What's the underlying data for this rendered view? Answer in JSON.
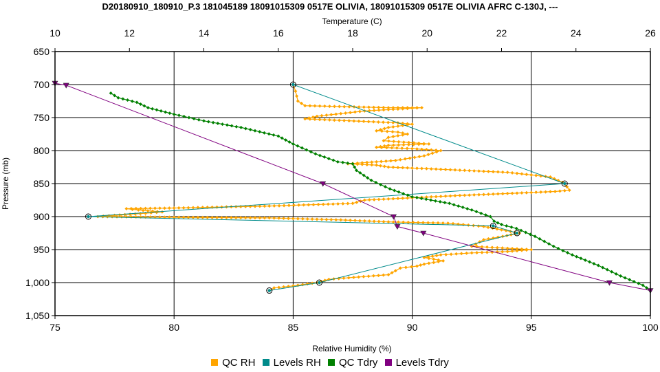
{
  "chart_data": {
    "type": "line",
    "title": "D20180910_180910_P.3 181045189 18091015309 0517E OLIVIA, 18091015309 0517E OLIVIA AFRC C-130J, ---",
    "x_bottom_label": "Relative Humidity (%)",
    "x_top_label": "Temperature (C)",
    "ylabel": "Pressure (mb)",
    "x_bottom_range": [
      75,
      100
    ],
    "x_top_range": [
      10,
      26
    ],
    "y_range": [
      650,
      1050
    ],
    "y_inverted": true,
    "grid": true,
    "legend_position": "bottom",
    "x_bottom_ticks": [
      "75",
      "80",
      "85",
      "90",
      "95",
      "100"
    ],
    "x_top_ticks": [
      "10",
      "12",
      "14",
      "16",
      "18",
      "20",
      "22",
      "24",
      "26"
    ],
    "y_ticks": [
      "650",
      "700",
      "750",
      "800",
      "850",
      "900",
      "950",
      "1,000",
      "1,050"
    ],
    "series": [
      {
        "name": "QC RH",
        "axis": "rh",
        "color": "#FFA500",
        "marker": "diamond",
        "points": [
          [
            85.0,
            700
          ],
          [
            85.1,
            710
          ],
          [
            85.2,
            725
          ],
          [
            85.5,
            732
          ],
          [
            89.0,
            735
          ],
          [
            90.4,
            735
          ],
          [
            88.0,
            740
          ],
          [
            86.0,
            748
          ],
          [
            85.5,
            752
          ],
          [
            89.4,
            758
          ],
          [
            90.0,
            760
          ],
          [
            89.0,
            765
          ],
          [
            88.5,
            770
          ],
          [
            89.4,
            772
          ],
          [
            89.8,
            775
          ],
          [
            89.0,
            780
          ],
          [
            88.8,
            785
          ],
          [
            90.7,
            790
          ],
          [
            89.0,
            792
          ],
          [
            88.5,
            795
          ],
          [
            90.0,
            797
          ],
          [
            91.2,
            800
          ],
          [
            90.5,
            808
          ],
          [
            89.3,
            815
          ],
          [
            87.3,
            820
          ],
          [
            88.5,
            822
          ],
          [
            89.0,
            825
          ],
          [
            91.0,
            828
          ],
          [
            94.0,
            833
          ],
          [
            95.8,
            840
          ],
          [
            96.3,
            848
          ],
          [
            96.5,
            855
          ],
          [
            96.6,
            860
          ],
          [
            96.0,
            862
          ],
          [
            92.0,
            868
          ],
          [
            88.0,
            875
          ],
          [
            87.5,
            880
          ],
          [
            84.0,
            884
          ],
          [
            80.0,
            887
          ],
          [
            78.0,
            888
          ],
          [
            78.5,
            890
          ],
          [
            79.5,
            893
          ],
          [
            78.8,
            895
          ],
          [
            77.5,
            898
          ],
          [
            76.8,
            900
          ],
          [
            80.0,
            901
          ],
          [
            84.0,
            902
          ],
          [
            87.0,
            905
          ],
          [
            89.0,
            908
          ],
          [
            91.5,
            910
          ],
          [
            93.0,
            915
          ],
          [
            94.5,
            925
          ],
          [
            93.8,
            930
          ],
          [
            93.0,
            935
          ],
          [
            92.5,
            945
          ],
          [
            94.0,
            948
          ],
          [
            95.0,
            950
          ],
          [
            94.0,
            953
          ],
          [
            92.5,
            955
          ],
          [
            91.2,
            958
          ],
          [
            90.5,
            962
          ],
          [
            91.3,
            967
          ],
          [
            90.5,
            972
          ],
          [
            90.2,
            975
          ],
          [
            89.5,
            978
          ],
          [
            89.3,
            982
          ],
          [
            89.0,
            988
          ],
          [
            86.5,
            995
          ],
          [
            86.0,
            1000
          ],
          [
            85.0,
            1005
          ],
          [
            84.2,
            1008
          ],
          [
            84.0,
            1012
          ]
        ]
      },
      {
        "name": "Levels RH",
        "axis": "rh",
        "color": "#008B8B",
        "marker": "circle",
        "points": [
          [
            85.0,
            700
          ],
          [
            96.4,
            850
          ],
          [
            76.4,
            900
          ],
          [
            93.4,
            914
          ],
          [
            94.4,
            925
          ],
          [
            86.1,
            1000
          ],
          [
            84.0,
            1012
          ]
        ]
      },
      {
        "name": "QC Tdry",
        "axis": "temp",
        "color": "#008000",
        "marker": "diamond",
        "points": [
          [
            11.5,
            713
          ],
          [
            11.7,
            720
          ],
          [
            12.2,
            727
          ],
          [
            12.5,
            735
          ],
          [
            13.2,
            745
          ],
          [
            14.0,
            755
          ],
          [
            15.0,
            765
          ],
          [
            16.0,
            778
          ],
          [
            16.4,
            790
          ],
          [
            17.0,
            805
          ],
          [
            17.6,
            817
          ],
          [
            18.0,
            820
          ],
          [
            18.1,
            830
          ],
          [
            18.5,
            845
          ],
          [
            19.0,
            858
          ],
          [
            19.6,
            870
          ],
          [
            20.6,
            880
          ],
          [
            21.2,
            890
          ],
          [
            21.7,
            900
          ],
          [
            21.8,
            907
          ],
          [
            22.0,
            912
          ],
          [
            22.4,
            918
          ],
          [
            22.9,
            930
          ],
          [
            23.4,
            945
          ],
          [
            23.9,
            958
          ],
          [
            24.6,
            974
          ],
          [
            25.2,
            990
          ],
          [
            25.8,
            1004
          ],
          [
            26.0,
            1012
          ]
        ]
      },
      {
        "name": "Levels Tdry",
        "axis": "temp",
        "color": "#800080",
        "marker": "triangle",
        "points": [
          [
            10.0,
            698
          ],
          [
            10.3,
            701
          ],
          [
            17.2,
            850
          ],
          [
            19.1,
            900
          ],
          [
            19.2,
            915
          ],
          [
            19.9,
            925
          ],
          [
            24.9,
            1000
          ],
          [
            26.0,
            1012
          ]
        ]
      }
    ],
    "legend": [
      {
        "label": "QC RH",
        "color": "#FFA500"
      },
      {
        "label": "Levels RH",
        "color": "#008B8B"
      },
      {
        "label": "QC Tdry",
        "color": "#008000"
      },
      {
        "label": "Levels Tdry",
        "color": "#800080"
      }
    ]
  }
}
